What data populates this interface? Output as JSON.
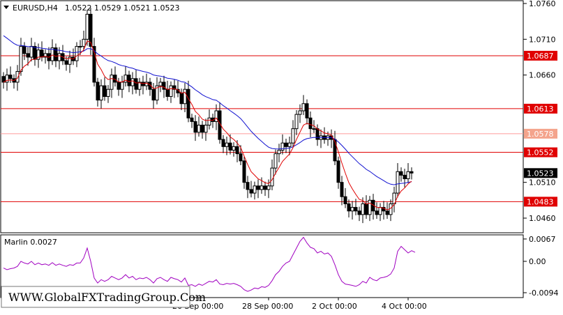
{
  "header": {
    "symbol": "EURUSD,H4",
    "ohlc": "1.0522 1.0529 1.0521 1.0523"
  },
  "indicator": {
    "label": "Marlin 0.0027",
    "ticks": [
      "0.0067",
      "0.00",
      "-0.0094"
    ]
  },
  "watermark": "WWW.GlobalFXTradingGroup.Com",
  "colors": {
    "candle": "#000000",
    "ma_fast": "#e00000",
    "ma_slow": "#1010d0",
    "level_line": "#e00000",
    "level_faint": "#ff9a9a",
    "badge_red": "#e00000",
    "badge_faint": "#f4a48c",
    "current_badge": "#000000",
    "marlin": "#a000c0",
    "grid_border": "#000000"
  },
  "chart_data": {
    "type": "candlestick",
    "price_axis": {
      "ylim": [
        1.043,
        1.076
      ],
      "ticks": [
        "1.0760",
        "1.0710",
        "1.0660",
        "1.0510",
        "1.0460"
      ]
    },
    "x_labels": [
      {
        "label": "26 Sep 00:00",
        "index": 56
      },
      {
        "label": "28 Sep 00:00",
        "index": 76
      },
      {
        "label": "2 Oct 00:00",
        "index": 96
      },
      {
        "label": "4 Oct 00:00",
        "index": 116
      }
    ],
    "levels": [
      {
        "price": 1.0687,
        "label": "1.0687",
        "style": "solid"
      },
      {
        "price": 1.0613,
        "label": "1.0613",
        "style": "solid"
      },
      {
        "price": 1.0578,
        "label": "1.0578",
        "style": "faint"
      },
      {
        "price": 1.0552,
        "label": "1.0552",
        "style": "solid"
      },
      {
        "price": 1.0483,
        "label": "1.0483",
        "style": "solid"
      }
    ],
    "current_price": {
      "price": 1.0523,
      "label": "1.0523"
    },
    "closes": [
      1.065,
      1.066,
      1.0655,
      1.065,
      1.0665,
      1.07,
      1.069,
      1.0685,
      1.07,
      1.0682,
      1.0695,
      1.0685,
      1.069,
      1.068,
      1.0698,
      1.068,
      1.069,
      1.068,
      1.0675,
      1.0685,
      1.068,
      1.07,
      1.07,
      1.071,
      1.0745,
      1.07,
      1.065,
      1.0625,
      1.0645,
      1.063,
      1.064,
      1.066,
      1.065,
      1.064,
      1.065,
      1.066,
      1.0645,
      1.0655,
      1.064,
      1.065,
      1.0645,
      1.065,
      1.064,
      1.0625,
      1.0645,
      1.065,
      1.064,
      1.063,
      1.0645,
      1.064,
      1.0635,
      1.062,
      1.064,
      1.06,
      1.0595,
      1.058,
      1.059,
      1.058,
      1.059,
      1.06,
      1.0595,
      1.061,
      1.057,
      1.056,
      1.0565,
      1.0555,
      1.056,
      1.055,
      1.054,
      1.051,
      1.05,
      1.0495,
      1.0505,
      1.05,
      1.0505,
      1.05,
      1.0505,
      1.053,
      1.055,
      1.0555,
      1.0565,
      1.056,
      1.0565,
      1.0585,
      1.0605,
      1.061,
      1.062,
      1.06,
      1.0585,
      1.0585,
      1.057,
      1.0575,
      1.057,
      1.0575,
      1.057,
      1.054,
      1.051,
      1.049,
      1.048,
      1.047,
      1.0475,
      1.047,
      1.0465,
      1.048,
      1.0465,
      1.0485,
      1.047,
      1.0465,
      1.0475,
      1.047,
      1.0465,
      1.048,
      1.0495,
      1.0525,
      1.052,
      1.0515,
      1.0525,
      1.0523
    ],
    "marlin": [
      -0.002,
      -0.0025,
      -0.0022,
      -0.002,
      -0.0015,
      0.0,
      -0.0005,
      -0.0008,
      0.0,
      -0.001,
      -0.0005,
      -0.001,
      -0.0008,
      -0.0012,
      -0.0004,
      -0.0012,
      -0.0008,
      -0.0012,
      -0.0015,
      -0.001,
      -0.0012,
      -0.0005,
      -0.0005,
      0.001,
      0.004,
      0.0,
      -0.005,
      -0.0065,
      -0.0055,
      -0.006,
      -0.0055,
      -0.0045,
      -0.005,
      -0.0055,
      -0.005,
      -0.004,
      -0.005,
      -0.0045,
      -0.0055,
      -0.005,
      -0.0052,
      -0.0048,
      -0.0055,
      -0.0065,
      -0.0052,
      -0.0048,
      -0.0055,
      -0.006,
      -0.0048,
      -0.0052,
      -0.0055,
      -0.0062,
      -0.005,
      -0.0072,
      -0.007,
      -0.0075,
      -0.0068,
      -0.0072,
      -0.0066,
      -0.006,
      -0.0062,
      -0.0055,
      -0.0068,
      -0.007,
      -0.0066,
      -0.0068,
      -0.0066,
      -0.007,
      -0.0075,
      -0.0085,
      -0.009,
      -0.0086,
      -0.008,
      -0.0082,
      -0.0076,
      -0.0078,
      -0.0072,
      -0.0058,
      -0.004,
      -0.003,
      -0.0015,
      -0.0005,
      0.0,
      0.002,
      0.004,
      0.006,
      0.0072,
      0.0055,
      0.0042,
      0.0038,
      0.0025,
      0.003,
      0.0022,
      0.0025,
      0.0015,
      -0.001,
      -0.004,
      -0.006,
      -0.0068,
      -0.007,
      -0.0072,
      -0.0075,
      -0.007,
      -0.006,
      -0.0065,
      -0.0048,
      -0.0055,
      -0.0058,
      -0.005,
      -0.0048,
      -0.0045,
      -0.0038,
      -0.002,
      0.003,
      0.0045,
      0.0035,
      0.0025,
      0.0032,
      0.0027
    ]
  }
}
